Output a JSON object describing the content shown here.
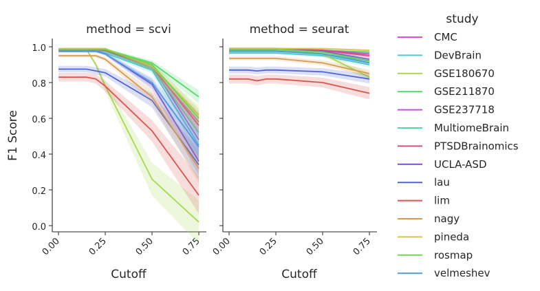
{
  "chart_data": {
    "type": "line",
    "ylabel": "F1 Score",
    "xlabel": "Cutoff",
    "legend": {
      "title": "study",
      "placement": "right"
    },
    "x": [
      0,
      0.05,
      0.1,
      0.15,
      0.2,
      0.25,
      0.5,
      0.75
    ],
    "xticks": [
      "0.00",
      "0.25",
      "0.50",
      "0.75"
    ],
    "yticks": [
      "0.0",
      "0.2",
      "0.4",
      "0.6",
      "0.8",
      "1.0"
    ],
    "xlim": [
      -0.02,
      0.77
    ],
    "ylim": [
      -0.04,
      1.05
    ],
    "grid": false,
    "panels": [
      {
        "title": "method = scvi",
        "series": [
          {
            "name": "CMC",
            "color": "#d94fd9",
            "values": [
              0.98,
              0.98,
              0.98,
              0.98,
              0.98,
              0.975,
              0.88,
              0.58
            ]
          },
          {
            "name": "DevBrain",
            "color": "#4fc8cc",
            "values": [
              0.975,
              0.975,
              0.975,
              0.975,
              0.975,
              0.965,
              0.87,
              0.45
            ]
          },
          {
            "name": "GSE180670",
            "color": "#a6d94f",
            "values": [
              0.985,
              0.985,
              0.985,
              0.985,
              0.9,
              0.78,
              0.26,
              0.02
            ]
          },
          {
            "name": "GSE211870",
            "color": "#4fd96a",
            "values": [
              0.985,
              0.985,
              0.985,
              0.985,
              0.985,
              0.985,
              0.91,
              0.72
            ]
          },
          {
            "name": "GSE237718",
            "color": "#c34fd9",
            "values": [
              0.985,
              0.985,
              0.985,
              0.985,
              0.985,
              0.98,
              0.89,
              0.48
            ]
          },
          {
            "name": "MultiomeBrain",
            "color": "#4fd9a6",
            "values": [
              0.985,
              0.985,
              0.985,
              0.985,
              0.985,
              0.975,
              0.88,
              0.52
            ]
          },
          {
            "name": "PTSDBrainomics",
            "color": "#d94f7a",
            "values": [
              0.985,
              0.985,
              0.985,
              0.985,
              0.985,
              0.98,
              0.89,
              0.56
            ]
          },
          {
            "name": "UCLA-ASD",
            "color": "#7a4fd9",
            "values": [
              0.975,
              0.975,
              0.975,
              0.975,
              0.975,
              0.96,
              0.79,
              0.36
            ]
          },
          {
            "name": "lau",
            "color": "#4f63d9",
            "values": [
              0.875,
              0.875,
              0.875,
              0.875,
              0.865,
              0.855,
              0.7,
              0.34
            ]
          },
          {
            "name": "lim",
            "color": "#d9534f",
            "values": [
              0.83,
              0.83,
              0.83,
              0.83,
              0.82,
              0.78,
              0.53,
              0.17
            ]
          },
          {
            "name": "nagy",
            "color": "#d99a4f",
            "values": [
              0.95,
              0.95,
              0.95,
              0.95,
              0.95,
              0.93,
              0.72,
              0.32
            ]
          },
          {
            "name": "pineda",
            "color": "#d9c24f",
            "values": [
              0.99,
              0.99,
              0.99,
              0.99,
              0.99,
              0.99,
              0.89,
              0.62
            ]
          },
          {
            "name": "rosmap",
            "color": "#6ad94f",
            "values": [
              0.985,
              0.985,
              0.985,
              0.985,
              0.985,
              0.985,
              0.9,
              0.6
            ]
          },
          {
            "name": "velmeshev",
            "color": "#4f9ad9",
            "values": [
              0.975,
              0.975,
              0.975,
              0.975,
              0.975,
              0.96,
              0.8,
              0.44
            ]
          }
        ]
      },
      {
        "title": "method = seurat",
        "series": [
          {
            "name": "CMC",
            "color": "#d94fd9",
            "values": [
              0.985,
              0.985,
              0.985,
              0.985,
              0.985,
              0.985,
              0.98,
              0.95
            ]
          },
          {
            "name": "DevBrain",
            "color": "#4fc8cc",
            "values": [
              0.965,
              0.965,
              0.965,
              0.965,
              0.965,
              0.965,
              0.95,
              0.9
            ]
          },
          {
            "name": "GSE180670",
            "color": "#a6d94f",
            "values": [
              0.985,
              0.985,
              0.985,
              0.985,
              0.985,
              0.985,
              0.96,
              0.83
            ]
          },
          {
            "name": "GSE211870",
            "color": "#4fd96a",
            "values": [
              0.985,
              0.985,
              0.985,
              0.985,
              0.985,
              0.985,
              0.98,
              0.97
            ]
          },
          {
            "name": "GSE237718",
            "color": "#c34fd9",
            "values": [
              0.99,
              0.99,
              0.99,
              0.99,
              0.99,
              0.99,
              0.98,
              0.96
            ]
          },
          {
            "name": "MultiomeBrain",
            "color": "#4fd9a6",
            "values": [
              0.975,
              0.975,
              0.975,
              0.975,
              0.975,
              0.975,
              0.96,
              0.92
            ]
          },
          {
            "name": "PTSDBrainomics",
            "color": "#d94f7a",
            "values": [
              0.985,
              0.985,
              0.985,
              0.985,
              0.985,
              0.985,
              0.98,
              0.95
            ]
          },
          {
            "name": "UCLA-ASD",
            "color": "#7a4fd9",
            "values": [
              0.985,
              0.985,
              0.985,
              0.985,
              0.985,
              0.985,
              0.975,
              0.93
            ]
          },
          {
            "name": "lau",
            "color": "#4f63d9",
            "values": [
              0.87,
              0.87,
              0.87,
              0.865,
              0.87,
              0.87,
              0.86,
              0.82
            ]
          },
          {
            "name": "lim",
            "color": "#d9534f",
            "values": [
              0.82,
              0.82,
              0.82,
              0.81,
              0.82,
              0.82,
              0.8,
              0.74
            ]
          },
          {
            "name": "nagy",
            "color": "#d99a4f",
            "values": [
              0.935,
              0.935,
              0.935,
              0.935,
              0.935,
              0.935,
              0.91,
              0.85
            ]
          },
          {
            "name": "pineda",
            "color": "#d9c24f",
            "values": [
              0.99,
              0.99,
              0.99,
              0.99,
              0.99,
              0.99,
              0.99,
              0.98
            ]
          },
          {
            "name": "rosmap",
            "color": "#6ad94f",
            "values": [
              0.985,
              0.985,
              0.985,
              0.985,
              0.985,
              0.985,
              0.97,
              0.92
            ]
          },
          {
            "name": "velmeshev",
            "color": "#4f9ad9",
            "values": [
              0.975,
              0.975,
              0.975,
              0.975,
              0.975,
              0.975,
              0.96,
              0.91
            ]
          }
        ]
      }
    ]
  }
}
